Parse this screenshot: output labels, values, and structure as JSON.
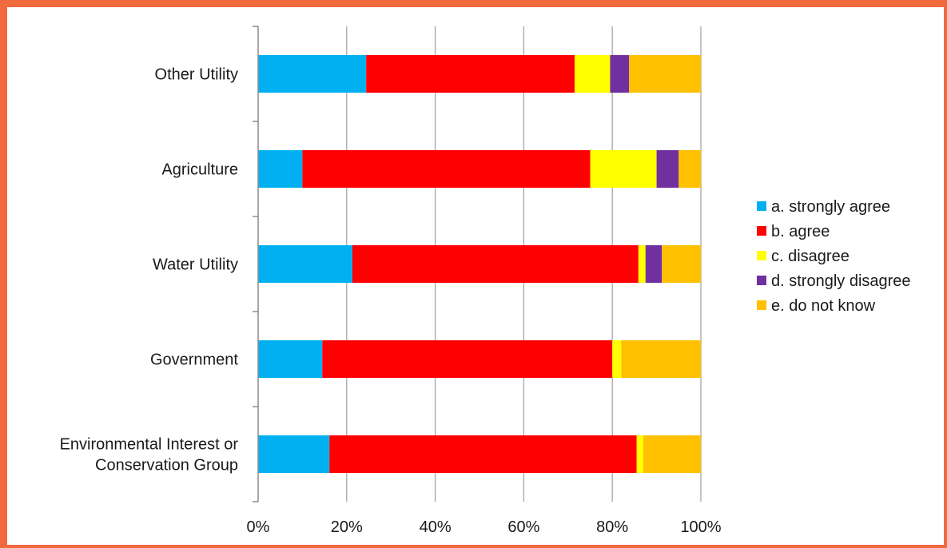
{
  "chart_data": {
    "type": "bar",
    "orientation": "horizontal",
    "stacked": true,
    "percent": true,
    "title": "",
    "xlabel": "",
    "ylabel": "",
    "xlim": [
      0,
      100
    ],
    "x_ticks": [
      "0%",
      "20%",
      "40%",
      "60%",
      "80%",
      "100%"
    ],
    "grid": true,
    "legend_position": "right",
    "categories": [
      [
        "Other Utility"
      ],
      [
        "Agriculture"
      ],
      [
        "Water Utility"
      ],
      [
        "Government"
      ],
      [
        "Environmental Interest or",
        "Conservation Group"
      ]
    ],
    "series": [
      {
        "name": "a. strongly agree",
        "color": "#00b0f0",
        "values": [
          24.4,
          10.0,
          21.3,
          14.5,
          16.1
        ]
      },
      {
        "name": "b. agree",
        "color": "#ff0000",
        "values": [
          47.1,
          65.0,
          64.6,
          65.5,
          69.4
        ]
      },
      {
        "name": "c. disagree",
        "color": "#ffff00",
        "values": [
          8.0,
          15.0,
          1.6,
          2.0,
          1.5
        ]
      },
      {
        "name": "d. strongly disagree",
        "color": "#7030a0",
        "values": [
          4.3,
          5.0,
          3.7,
          0.0,
          0.0
        ]
      },
      {
        "name": "e. do not know",
        "color": "#ffc000",
        "values": [
          16.2,
          5.0,
          8.8,
          18.0,
          13.0
        ]
      }
    ]
  }
}
